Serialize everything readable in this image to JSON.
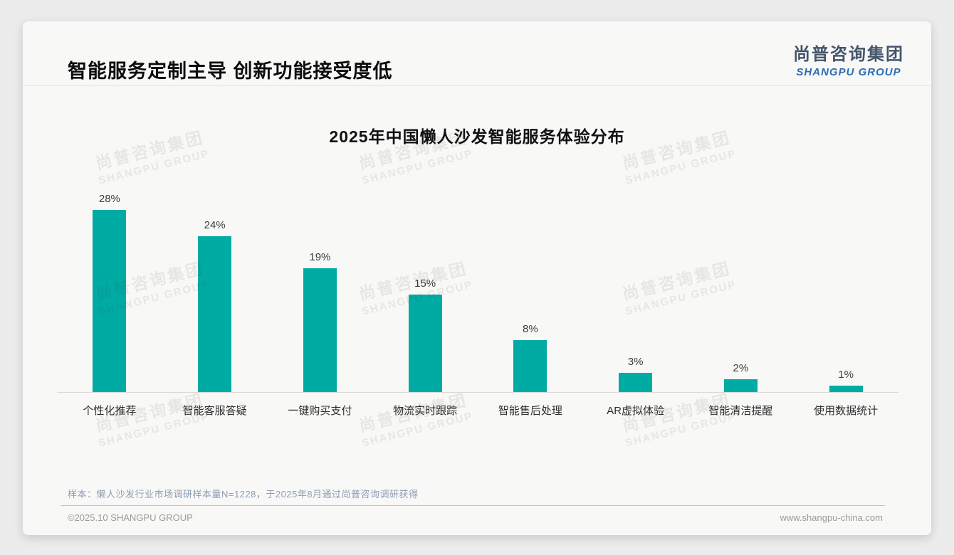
{
  "page": {
    "title": "智能服务定制主导 创新功能接受度低",
    "logo": {
      "cn": "尚普咨询集团",
      "en": "SHANGPU GROUP"
    },
    "watermark": {
      "line1": "尚普咨询集团",
      "line2": "SHANGPU GROUP"
    },
    "footer": {
      "sample_note": "样本：懒人沙发行业市场调研样本量N=1228，于2025年8月通过尚普咨询调研获得",
      "copyright": "©2025.10 SHANGPU GROUP",
      "website": "www.shangpu-china.com"
    }
  },
  "chart_data": {
    "type": "bar",
    "title": "2025年中国懒人沙发智能服务体验分布",
    "categories": [
      "个性化推荐",
      "智能客服答疑",
      "一键购买支付",
      "物流实时跟踪",
      "智能售后处理",
      "AR虚拟体验",
      "智能清洁提醒",
      "使用数据统计"
    ],
    "values": [
      28,
      24,
      19,
      15,
      8,
      3,
      2,
      1
    ],
    "value_labels": [
      "28%",
      "24%",
      "19%",
      "15%",
      "8%",
      "3%",
      "2%",
      "1%"
    ],
    "bar_color": "#00aba4",
    "xlabel": "",
    "ylabel": "",
    "ylim": [
      0,
      30
    ],
    "grid": false,
    "legend": false,
    "data_labels_position": "above-bars"
  }
}
